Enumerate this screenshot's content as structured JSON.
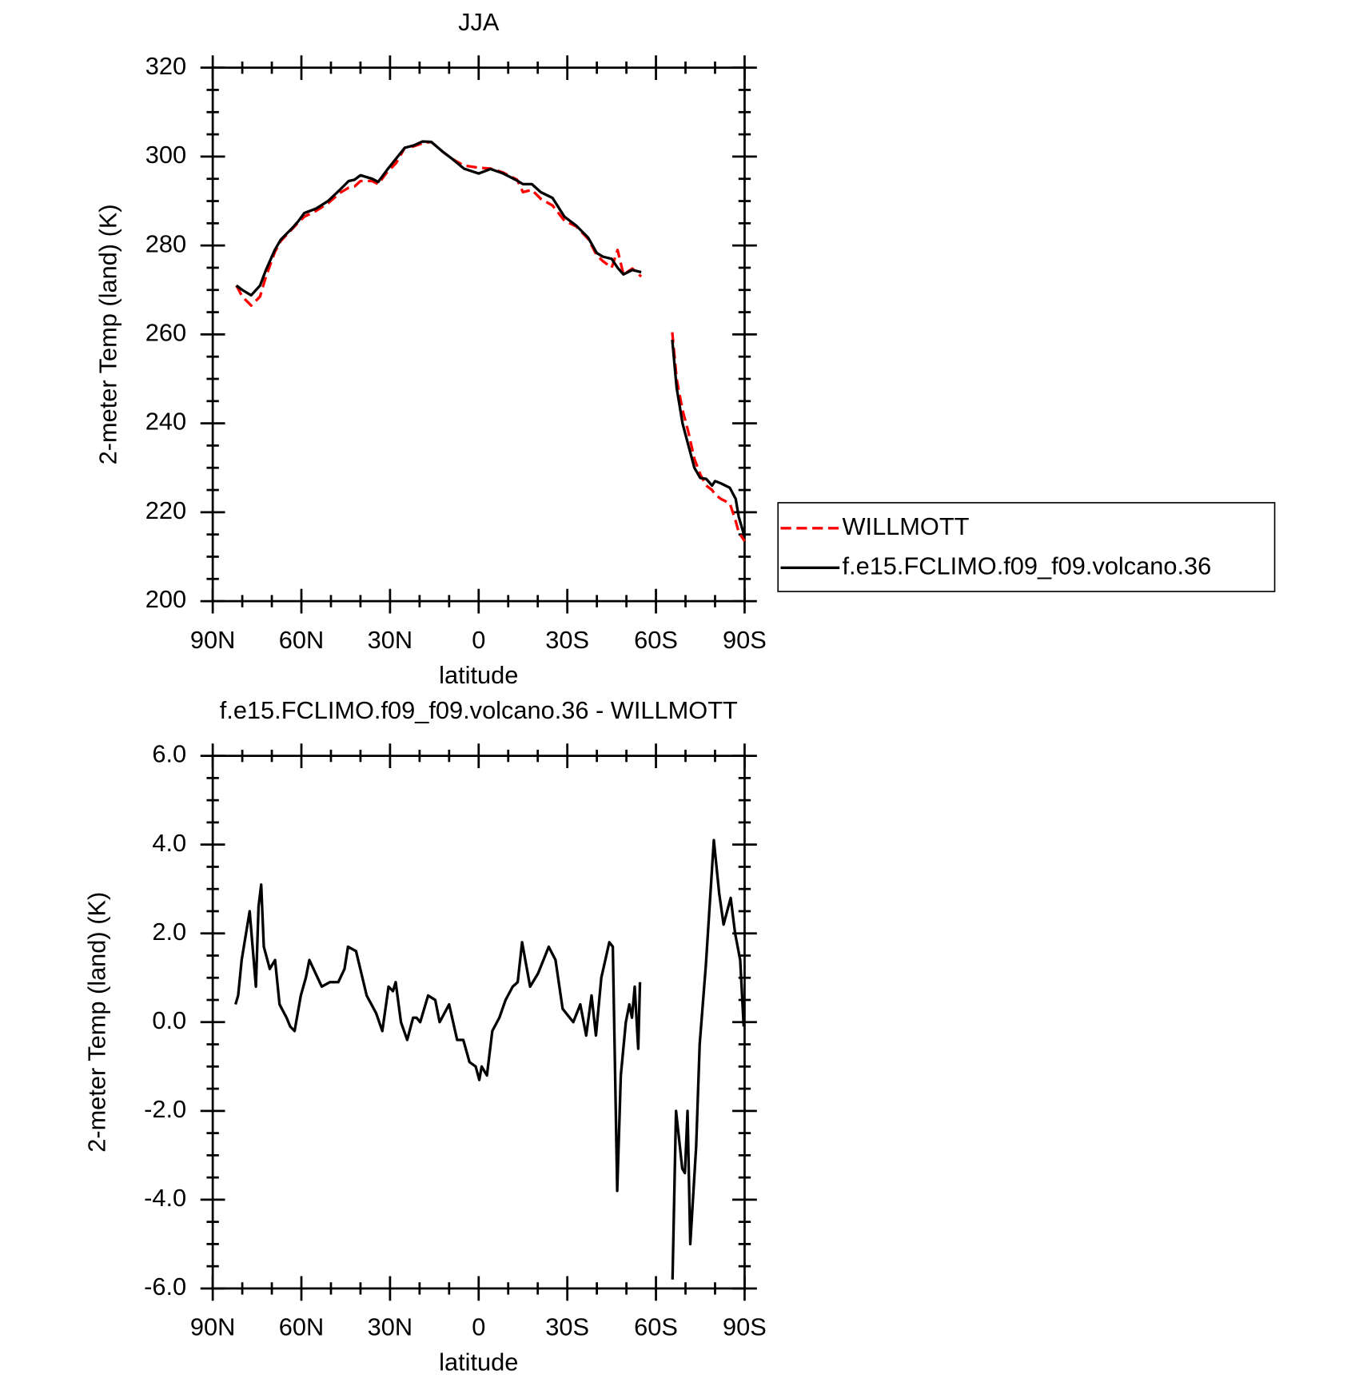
{
  "chart_data": [
    {
      "type": "line",
      "title": "JJA",
      "xlabel": "latitude",
      "ylabel": "2-meter Temp (land) (K)",
      "x": [
        82,
        80,
        77,
        74,
        72,
        69,
        67,
        63,
        61,
        59,
        55,
        51,
        47,
        44,
        42,
        40,
        36,
        34,
        31,
        28,
        25,
        22,
        19,
        16,
        12,
        9,
        5,
        0,
        -4,
        -8,
        -13,
        -15,
        -18,
        -21,
        -25,
        -29,
        -33,
        -37,
        -40,
        -42,
        -45,
        -47,
        -49,
        -52,
        -55,
        -60,
        -65.5,
        -67,
        -69,
        -71,
        -73,
        -75,
        -77,
        -79,
        -80,
        -82,
        -85,
        -87,
        -88,
        -90
      ],
      "series": [
        {
          "name": "WILLMOTT",
          "color": "#ff0000",
          "line_style": "dashed",
          "values": [
            271,
            268.5,
            266.5,
            268.5,
            273,
            278.5,
            281,
            283.8,
            285.2,
            286.5,
            287.8,
            289.5,
            291.8,
            293,
            293.3,
            294.5,
            294.5,
            293.8,
            296.5,
            298.5,
            302,
            302.3,
            303,
            303.3,
            301,
            299.5,
            298,
            297.5,
            297.3,
            296.5,
            294.8,
            292,
            292.5,
            290.5,
            289,
            285.6,
            284.3,
            281.5,
            277.8,
            276.5,
            275,
            279,
            273.5,
            274.8,
            273,
            null,
            260.5,
            250,
            243,
            238,
            232,
            228.5,
            226,
            225,
            224,
            223,
            222,
            218,
            215.5,
            213.5
          ]
        },
        {
          "name": "f.e15.FCLIMO.f09_f09.volcano.36",
          "color": "#000000",
          "line_style": "solid",
          "values": [
            271,
            270,
            268.8,
            271,
            274.5,
            279,
            281.3,
            284,
            285.5,
            287.3,
            288.3,
            290,
            292.5,
            294.5,
            294.8,
            295.8,
            295,
            294.3,
            297,
            299.5,
            302,
            302.5,
            303.4,
            303.3,
            301,
            299.5,
            297.3,
            296.2,
            297.2,
            296.3,
            294.6,
            293.8,
            293.8,
            292,
            290.7,
            286.5,
            284.5,
            281.8,
            278.3,
            277.5,
            277,
            275,
            273.5,
            274.5,
            274,
            null,
            258.8,
            248,
            240,
            235,
            230,
            227.7,
            227.5,
            226,
            227,
            226.5,
            225.5,
            223,
            219,
            214.5
          ]
        }
      ],
      "xlim": [
        90,
        -90
      ],
      "xticks": [
        {
          "value": 90,
          "label": "90N"
        },
        {
          "value": 60,
          "label": "60N"
        },
        {
          "value": 30,
          "label": "30N"
        },
        0,
        {
          "value": -30,
          "label": "30S"
        },
        {
          "value": -60,
          "label": "60S"
        },
        {
          "value": -90,
          "label": "90S"
        }
      ],
      "xminorticks": [
        80,
        70,
        50,
        40,
        20,
        10,
        -10,
        -20,
        -40,
        -50,
        -70,
        -80
      ],
      "ylim": [
        200,
        320
      ],
      "yticks": [
        200,
        220,
        240,
        260,
        280,
        300,
        320
      ],
      "yminorticks": [
        205,
        210,
        215,
        225,
        230,
        235,
        245,
        250,
        255,
        265,
        270,
        275,
        285,
        290,
        295,
        305,
        310,
        315
      ],
      "legend": "right"
    },
    {
      "type": "line",
      "title": "f.e15.FCLIMO.f09_f09.volcano.36 - WILLMOTT",
      "xlabel": "latitude",
      "ylabel": "2-meter Temp (land) (K)",
      "x": [
        82.3,
        81.4,
        80.2,
        77.5,
        75.4,
        74.5,
        73.6,
        72.7,
        70.7,
        68.9,
        67.4,
        65.0,
        63.8,
        62.3,
        60.2,
        58.5,
        57.3,
        53.1,
        50.4,
        47.5,
        45.4,
        44.2,
        41.5,
        37.9,
        34.7,
        32.6,
        30.5,
        29.0,
        28.1,
        26.3,
        24.2,
        22.2,
        21.0,
        19.8,
        17.1,
        14.7,
        13.2,
        10.0,
        7.3,
        5.2,
        3.1,
        1.0,
        -0.2,
        -1.0,
        -2.8,
        -4.6,
        -7.0,
        -9.1,
        -11.5,
        -13.2,
        -14.7,
        -17.4,
        -20.1,
        -23.7,
        -26.0,
        -28.4,
        -32.0,
        -34.4,
        -36.4,
        -38.2,
        -39.7,
        -41.5,
        -44.2,
        -45.4,
        -46.9,
        -48.1,
        -49.8,
        -51.0,
        -51.9,
        -52.8,
        -54.0,
        -54.6,
        -60,
        -65.6,
        -66.8,
        -68.9,
        -69.8,
        -70.7,
        -71.6,
        -73.6,
        -74.8,
        -76.9,
        -79.6,
        -81.4,
        -82.9,
        -85.3,
        -86.8,
        -88.5,
        -89.7
      ],
      "series": [
        {
          "name": "f.e15.FCLIMO.f09_f09.volcano.36 - WILLMOTT",
          "color": "#000000",
          "line_style": "solid",
          "values": [
            0.4,
            0.6,
            1.4,
            2.5,
            0.8,
            2.6,
            3.1,
            1.7,
            1.2,
            1.4,
            0.4,
            0.1,
            -0.1,
            -0.2,
            0.6,
            1.0,
            1.4,
            0.8,
            0.9,
            0.9,
            1.2,
            1.7,
            1.6,
            0.6,
            0.2,
            -0.2,
            0.8,
            0.7,
            0.9,
            0.0,
            -0.4,
            0.1,
            0.1,
            0.0,
            0.6,
            0.5,
            0.0,
            0.4,
            -0.4,
            -0.4,
            -0.9,
            -1.0,
            -1.3,
            -1.0,
            -1.2,
            -0.2,
            0.1,
            0.5,
            0.8,
            0.9,
            1.8,
            0.8,
            1.1,
            1.7,
            1.4,
            0.3,
            0.0,
            0.4,
            -0.3,
            0.6,
            -0.3,
            1.0,
            1.8,
            1.7,
            -3.8,
            -1.2,
            0.0,
            0.4,
            0.1,
            0.8,
            -0.6,
            0.9,
            null,
            -5.8,
            -2.0,
            -3.3,
            -3.4,
            -2.0,
            -5.0,
            -2.8,
            -0.5,
            1.3,
            4.1,
            2.9,
            2.2,
            2.8,
            2.0,
            1.4,
            -0.1
          ]
        }
      ],
      "xlim": [
        90,
        -90
      ],
      "xticks": [
        {
          "value": 90,
          "label": "90N"
        },
        {
          "value": 60,
          "label": "60N"
        },
        {
          "value": 30,
          "label": "30N"
        },
        0,
        {
          "value": -30,
          "label": "30S"
        },
        {
          "value": -60,
          "label": "60S"
        },
        {
          "value": -90,
          "label": "90S"
        }
      ],
      "xminorticks": [
        80,
        70,
        50,
        40,
        20,
        10,
        -10,
        -20,
        -40,
        -50,
        -70,
        -80
      ],
      "ylim": [
        -6,
        6
      ],
      "yticks": [
        {
          "value": -6,
          "label": "-6.0"
        },
        {
          "value": -4,
          "label": "-4.0"
        },
        {
          "value": -2,
          "label": "-2.0"
        },
        {
          "value": 0,
          "label": "0.0"
        },
        {
          "value": 2,
          "label": "2.0"
        },
        {
          "value": 4,
          "label": "4.0"
        },
        {
          "value": 6,
          "label": "6.0"
        }
      ],
      "yminorticks": [
        -5.5,
        -5,
        -4.5,
        -3.5,
        -3,
        -2.5,
        -1.5,
        -1,
        -0.5,
        0.5,
        1,
        1.5,
        2.5,
        3,
        3.5,
        4.5,
        5,
        5.5
      ]
    }
  ]
}
